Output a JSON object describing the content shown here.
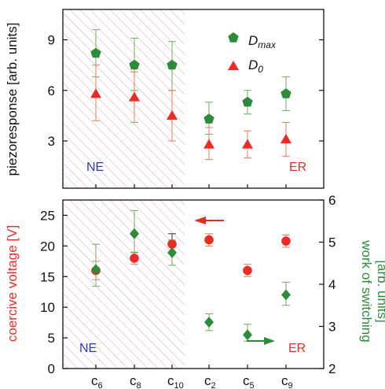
{
  "colors": {
    "red": "#ee2a24",
    "green": "#2e8b3a",
    "blue": "#2b3bb0",
    "hatch": "#d4a9b2",
    "black": "#111111"
  },
  "chart_data": [
    {
      "type": "scatter",
      "ylabel": "piezoresponse [arb. units]",
      "ylim": [
        0.2,
        10.8
      ],
      "yticks": [
        3,
        6,
        9
      ],
      "categories": [
        "c6",
        "c8",
        "c10",
        "c2",
        "c5",
        "c9"
      ],
      "regions": [
        {
          "label": "NE",
          "categories": [
            "c6",
            "c8",
            "c10"
          ],
          "hatched": true
        },
        {
          "label": "ER",
          "categories": [
            "c2",
            "c5",
            "c9"
          ],
          "hatched": false
        }
      ],
      "legend_position": "top-right",
      "series": [
        {
          "key": "dmax",
          "name_main": "D",
          "name_sub": "max",
          "marker": "pentagon",
          "color": "#2e8b3a",
          "values": [
            8.2,
            7.5,
            7.5,
            4.3,
            5.3,
            5.8
          ],
          "err_low": [
            6.8,
            6.0,
            6.0,
            3.4,
            4.6,
            4.8
          ],
          "err_high": [
            9.6,
            9.1,
            8.9,
            5.3,
            6.0,
            6.8
          ]
        },
        {
          "key": "d0",
          "name_main": "D",
          "name_sub": "0",
          "marker": "triangle",
          "color": "#ee2a24",
          "values": [
            5.8,
            5.6,
            4.5,
            2.8,
            2.8,
            3.1
          ],
          "err_low": [
            4.2,
            4.1,
            3.0,
            1.9,
            2.0,
            2.1
          ],
          "err_high": [
            7.5,
            7.1,
            6.0,
            3.8,
            3.6,
            4.1
          ]
        }
      ]
    },
    {
      "type": "scatter",
      "ylabel_left": "coercive voltage [V]",
      "ylabel_right_line1": "work of switching",
      "ylabel_right_line2": "[arb. units]",
      "ylim_left": [
        0,
        27.5
      ],
      "ylim_right": [
        2,
        6
      ],
      "yticks_left": [
        "0",
        "5",
        "10",
        "15",
        "20",
        "25"
      ],
      "yticks_right": [
        "2",
        "3",
        "4",
        "5",
        "6"
      ],
      "categories": [
        "c6",
        "c8",
        "c10",
        "c2",
        "c5",
        "c9"
      ],
      "xtick_labels": [
        {
          "main": "c",
          "sub": "6"
        },
        {
          "main": "c",
          "sub": "8"
        },
        {
          "main": "c",
          "sub": "10"
        },
        {
          "main": "c",
          "sub": "2"
        },
        {
          "main": "c",
          "sub": "5"
        },
        {
          "main": "c",
          "sub": "9"
        }
      ],
      "regions": [
        {
          "label": "NE",
          "categories": [
            "c6",
            "c8",
            "c10"
          ],
          "hatched": true
        },
        {
          "label": "ER",
          "categories": [
            "c2",
            "c5",
            "c9"
          ],
          "hatched": false
        }
      ],
      "series": [
        {
          "key": "coercive",
          "axis": "left",
          "marker": "circle",
          "color": "#ee2a24",
          "values": [
            16.0,
            18.0,
            20.3,
            21.0,
            16.0,
            20.8
          ],
          "err_low": [
            14.5,
            17.0,
            19.0,
            20.0,
            15.0,
            19.8
          ],
          "err_high": [
            17.5,
            19.0,
            22.0,
            22.0,
            17.0,
            21.8
          ]
        },
        {
          "key": "work",
          "axis": "right",
          "marker": "diamond",
          "color": "#2e8b3a",
          "values": [
            4.35,
            5.2,
            4.75,
            3.1,
            2.8,
            3.75
          ],
          "err_low": [
            3.95,
            4.75,
            4.45,
            2.9,
            2.65,
            3.5
          ],
          "err_high": [
            4.95,
            5.75,
            5.05,
            3.3,
            3.05,
            4.05
          ]
        }
      ],
      "annotations": [
        {
          "type": "arrow",
          "direction": "left",
          "color": "#ee2a24",
          "axis": "left",
          "target": "coercive"
        },
        {
          "type": "arrow",
          "direction": "right",
          "color": "#2e8b3a",
          "axis": "right",
          "target": "work"
        }
      ]
    }
  ]
}
